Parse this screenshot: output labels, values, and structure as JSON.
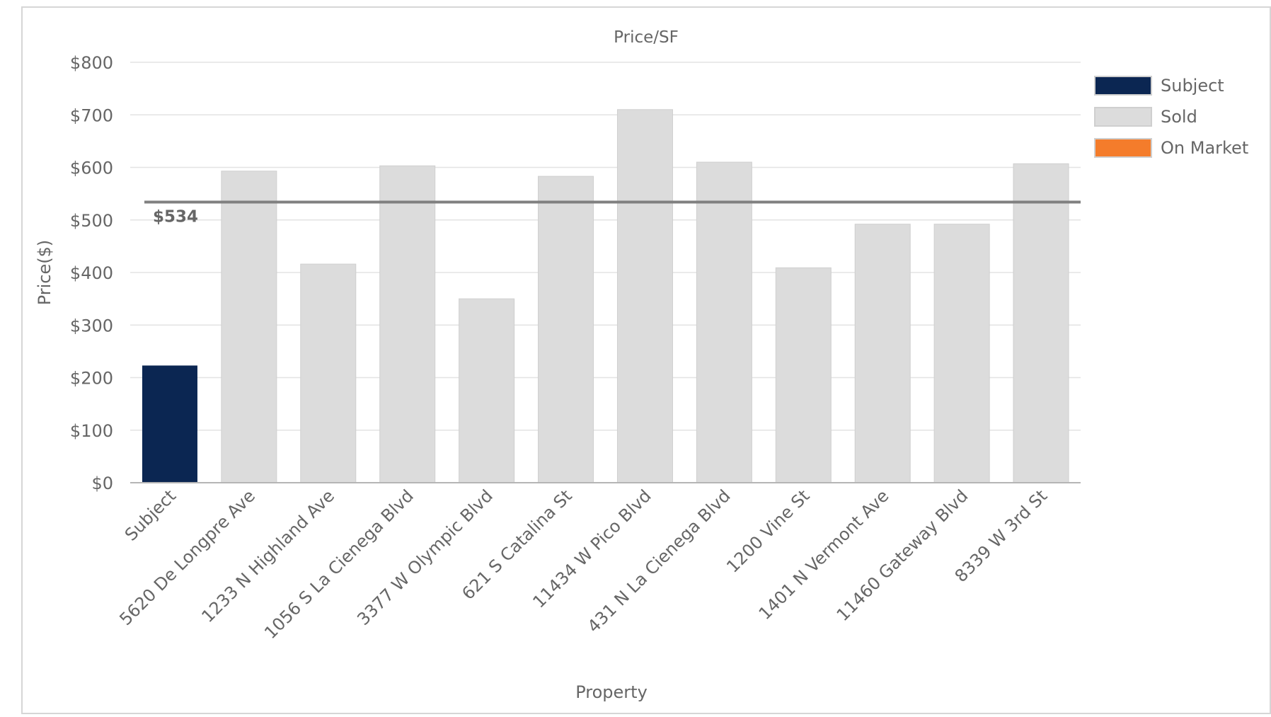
{
  "chart_data": {
    "type": "bar",
    "title": "Price/SF",
    "xlabel": "Property",
    "ylabel": "Price($)",
    "ylim": [
      0,
      800
    ],
    "yticks": [
      "$0",
      "$100",
      "$200",
      "$300",
      "$400",
      "$500",
      "$600",
      "$700",
      "$800"
    ],
    "ytick_values": [
      0,
      100,
      200,
      300,
      400,
      500,
      600,
      700,
      800
    ],
    "grid": true,
    "legend_position": "right",
    "reference_line": {
      "value": 534,
      "label": "$534",
      "color": "#808080"
    },
    "categories": [
      "Subject",
      "5620 De Longpre Ave",
      "1233 N Highland Ave",
      "1056 S La Cienega Blvd",
      "3377 W Olympic Blvd",
      "621 S Catalina St",
      "11434 W Pico Blvd",
      "431 N La Cienega Blvd",
      "1200 Vine St",
      "1401 N Vermont Ave",
      "11460 Gateway Blvd",
      "8339 W 3rd St"
    ],
    "values": [
      223,
      593,
      416,
      603,
      350,
      583,
      710,
      610,
      409,
      492,
      492,
      607
    ],
    "bar_status": [
      "Subject",
      "Sold",
      "Sold",
      "Sold",
      "Sold",
      "Sold",
      "Sold",
      "Sold",
      "Sold",
      "Sold",
      "Sold",
      "Sold"
    ],
    "legend": [
      {
        "name": "Subject",
        "color": "#0b2652"
      },
      {
        "name": "Sold",
        "color": "#dcdcdc"
      },
      {
        "name": "On Market",
        "color": "#f47c2b"
      }
    ]
  }
}
